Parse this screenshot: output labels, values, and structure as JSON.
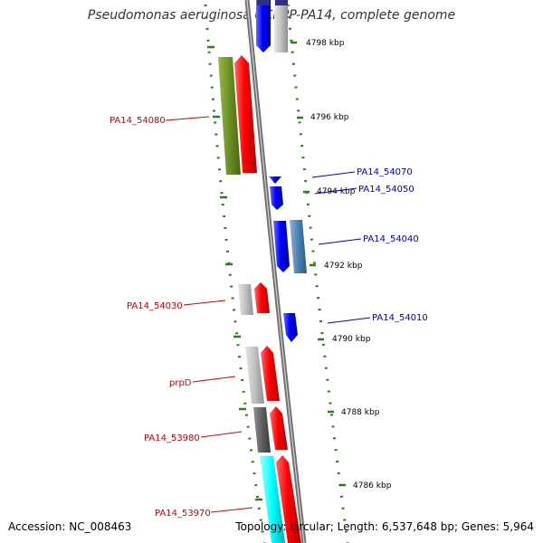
{
  "title": "Pseudomonas aeruginosa UCBPP-PA14, complete genome",
  "footer": {
    "accession": "Accession: NC_008463",
    "summary": "Topology: circular; Length: 6,537,648 bp; Genes: 5,964"
  },
  "colors": {
    "forward_label": "#cc0000",
    "reverse_label": "#0000cc",
    "tick": "#2e7d1e",
    "backbone": "#808080"
  },
  "kbp_labels": [
    "4798 kbp",
    "4796 kbp",
    "4794 kbp",
    "4792 kbp",
    "4790 kbp",
    "4788 kbp",
    "4786 kbp"
  ],
  "gene_labels": {
    "left": [
      "PA14_54080",
      "PA14_54030",
      "prpD",
      "PA14_53980",
      "PA14_53970"
    ],
    "right": [
      "PA14_54070",
      "PA14_54050",
      "PA14_54040",
      "PA14_54010"
    ]
  }
}
